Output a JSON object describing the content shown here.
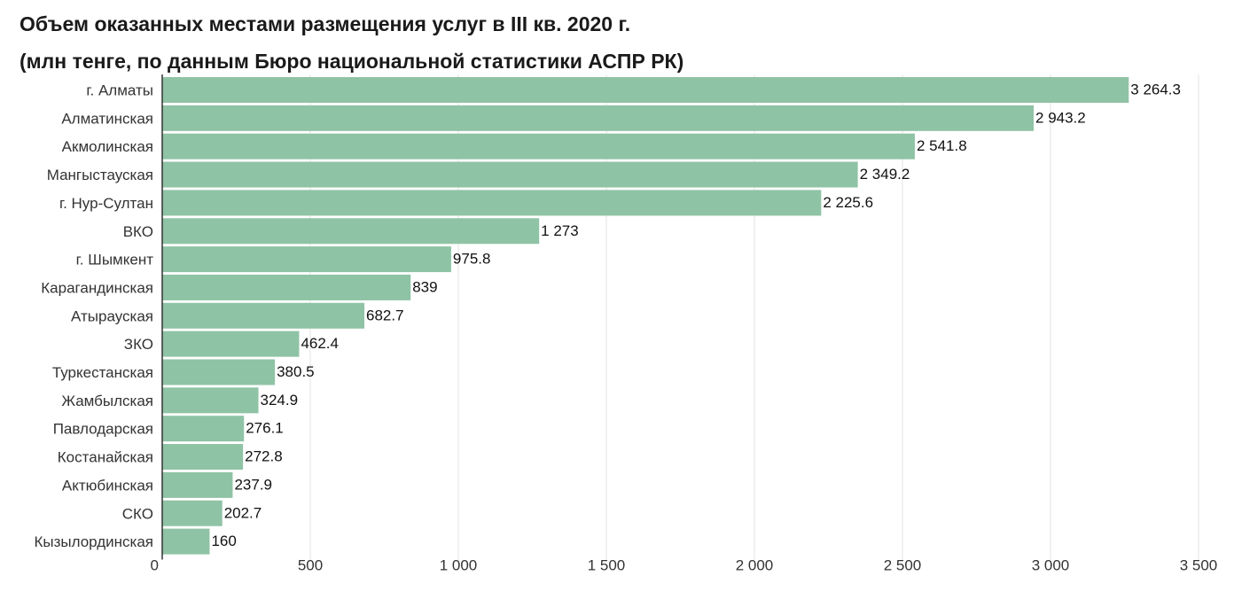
{
  "title": {
    "line1": "Объем оказанных местами размещения услуг в III кв. 2020 г.",
    "line2": "(млн тенге, по данным Бюро национальной статистики АСПР РК)"
  },
  "chart_data": {
    "type": "bar",
    "orientation": "horizontal",
    "categories": [
      "г. Алматы",
      "Алматинская",
      "Акмолинская",
      "Мангыстауская",
      "г. Нур-Султан",
      "ВКО",
      "г. Шымкент",
      "Карагандинская",
      "Атырауская",
      "ЗКО",
      "Туркестанская",
      "Жамбылская",
      "Павлодарская",
      "Костанайская",
      "Актюбинская",
      "СКО",
      "Кызылординская"
    ],
    "values": [
      3264.3,
      2943.2,
      2541.8,
      2349.2,
      2225.6,
      1273,
      975.8,
      839,
      682.7,
      462.4,
      380.5,
      324.9,
      276.1,
      272.8,
      237.9,
      202.7,
      160
    ],
    "value_labels": [
      "3 264.3",
      "2 943.2",
      "2 541.8",
      "2 349.2",
      "2 225.6",
      "1 273",
      "975.8",
      "839",
      "682.7",
      "462.4",
      "380.5",
      "324.9",
      "276.1",
      "272.8",
      "237.9",
      "202.7",
      "160"
    ],
    "x_ticks": [
      0,
      500,
      1000,
      1500,
      2000,
      2500,
      3000,
      3500
    ],
    "x_tick_labels": [
      "0",
      "500",
      "1 000",
      "1 500",
      "2 000",
      "2 500",
      "3 000",
      "3 500"
    ],
    "xlim": [
      0,
      3500
    ],
    "grid": true,
    "bar_color": "#8fc3a5",
    "grid_color": "#e3e3e3",
    "axis_color": "#333333"
  }
}
